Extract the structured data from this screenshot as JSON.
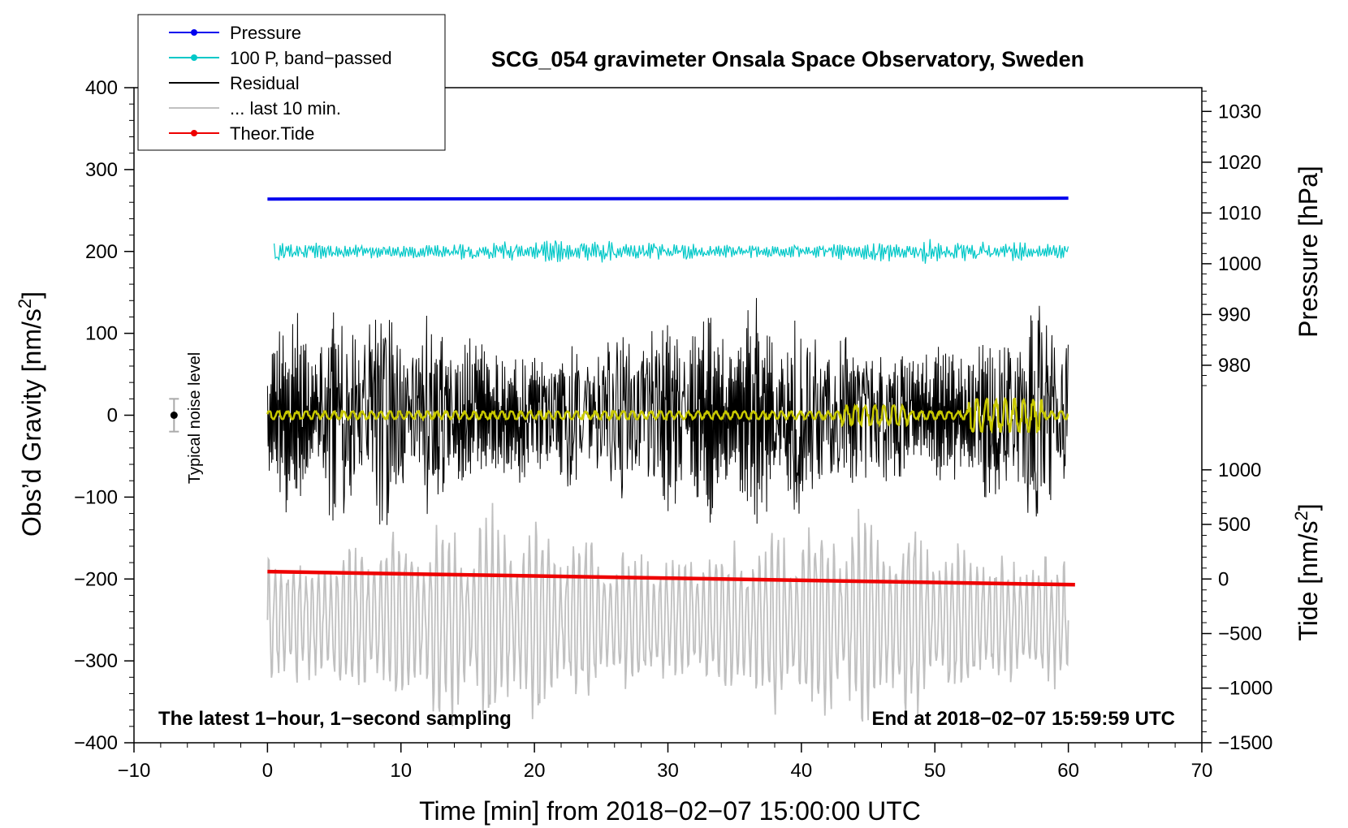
{
  "chart_data": {
    "type": "line",
    "title": "SCG_054 gravimeter Onsala Space Observatory, Sweden",
    "xlabel": "Time [min] from 2018−02−07 15:00:00 UTC",
    "ylabel_left": "Obs’d Gravity [nm/s",
    "ylabel_right_pressure": "Pressure [hPa]",
    "ylabel_right_tide": "Tide [nm/s",
    "superscript": "2",
    "label_close": "]",
    "xlim": [
      -10,
      70
    ],
    "ylim": [
      -400,
      400
    ],
    "x_ticks": [
      -10,
      0,
      10,
      20,
      30,
      40,
      50,
      60,
      70
    ],
    "x_tick_labels": [
      "−10",
      "0",
      "10",
      "20",
      "30",
      "40",
      "50",
      "60",
      "70"
    ],
    "y_ticks": [
      -400,
      -300,
      -200,
      -100,
      0,
      100,
      200,
      300,
      400
    ],
    "y_tick_labels": [
      "−400",
      "−300",
      "−200",
      "−100",
      "0",
      "100",
      "200",
      "300",
      "400"
    ],
    "pressure_axis": {
      "ticks": [
        980,
        990,
        1000,
        1010,
        1020,
        1030
      ],
      "tick_labels": [
        "980",
        "990",
        "1000",
        "1010",
        "1020",
        "1030"
      ],
      "gravity_at_1000": 185,
      "gravity_per_hPa": 6.2
    },
    "tide_axis": {
      "ticks": [
        -1500,
        -1000,
        -500,
        0,
        500,
        1000
      ],
      "tick_labels": [
        "−1500",
        "−1000",
        "−500",
        "0",
        "500",
        "1000"
      ],
      "gravity_at_0": -200,
      "gravity_per_unit": 0.1333
    },
    "series": [
      {
        "name": "Pressure",
        "type": "flat",
        "color": "#0000ee",
        "x_start": 0,
        "x_end": 60,
        "gravity_start": 264,
        "gravity_end": 265,
        "pressure_hPa": 1013
      },
      {
        "name": "100 P, band−passed",
        "type": "oscillation",
        "color": "#00c8c8",
        "x_start": 0.5,
        "x_end": 60,
        "center": 200,
        "amplitude": 16
      },
      {
        "name": "Residual",
        "type": "oscillation",
        "color": "#000000",
        "x_start": 0,
        "x_end": 60,
        "center": 0,
        "amplitude": 150
      },
      {
        "name": "... last 10 min.",
        "type": "oscillation",
        "color": "#c0c0c0",
        "x_start": 0,
        "x_end": 60,
        "center": -250,
        "amplitude": 150
      },
      {
        "name": "Theor.Tide",
        "type": "trend",
        "color": "#ee0000",
        "x_start": 0,
        "x_end": 60.5,
        "gravity_start": -191,
        "gravity_end": -207
      }
    ],
    "filtered_residual": {
      "color": "#c8c800",
      "center": 0,
      "amplitude": 8
    },
    "noise_marker": {
      "label": "Typical noise level",
      "x": -7,
      "center": 0,
      "half_range": 20
    },
    "annotations": {
      "bottom_left": "The latest 1−hour, 1−second sampling",
      "bottom_right": "End at 2018−02−07 15:59:59 UTC"
    },
    "legend": {
      "placement": "top-left",
      "entries": [
        {
          "label": "Pressure",
          "color": "#0000ee",
          "marker": true
        },
        {
          "label": "100 P, band−passed",
          "color": "#00c8c8",
          "marker": true
        },
        {
          "label": "Residual",
          "color": "#000000",
          "marker": false
        },
        {
          "label": "... last 10 min.",
          "color": "#c0c0c0",
          "marker": false
        },
        {
          "label": "Theor.Tide",
          "color": "#ee0000",
          "marker": true
        }
      ]
    }
  }
}
